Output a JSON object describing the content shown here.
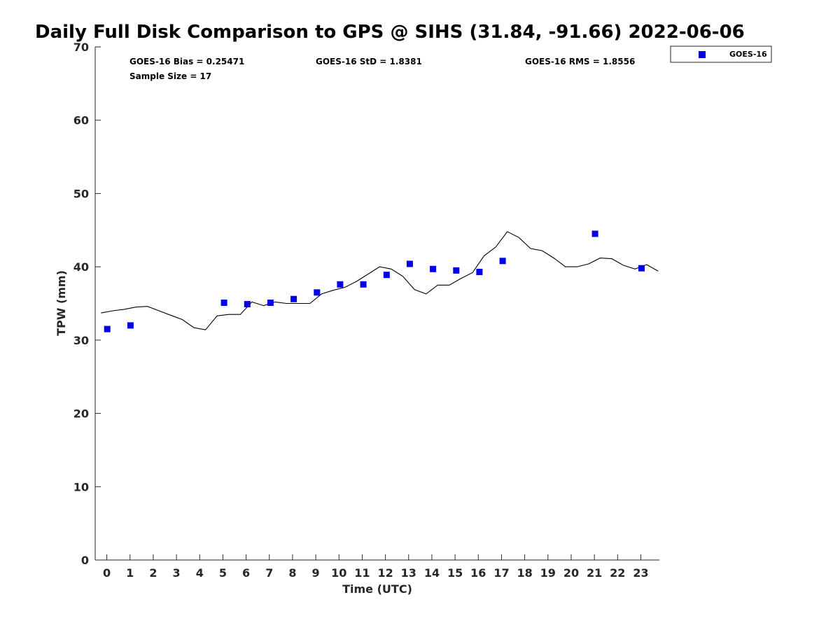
{
  "chart_data": {
    "type": "scatter",
    "title": "Daily Full Disk Comparison to GPS @ SIHS (31.84, -91.66) 2022-06-06",
    "xlabel": "Time (UTC)",
    "ylabel": "TPW (mm)",
    "xlim": [
      -0.5,
      23.8
    ],
    "ylim": [
      0,
      70
    ],
    "x_ticks": [
      0,
      1,
      2,
      3,
      4,
      5,
      6,
      7,
      8,
      9,
      10,
      11,
      12,
      13,
      14,
      15,
      16,
      17,
      18,
      19,
      20,
      21,
      22,
      23
    ],
    "y_ticks": [
      0,
      10,
      20,
      30,
      40,
      50,
      60,
      70
    ],
    "grid": false,
    "legend_position": "outside-top-right",
    "stats": [
      "GOES-16 Bias = 0.25471",
      "GOES-16 StD = 1.8381",
      "GOES-16 RMS = 1.8556",
      "Sample Size = 17"
    ],
    "series": [
      {
        "name": "GOES-16",
        "kind": "scatter",
        "marker": "square",
        "color": "#0000e6",
        "x": [
          0.02,
          1.02,
          5.05,
          6.05,
          7.05,
          8.05,
          9.05,
          10.05,
          11.05,
          12.05,
          13.05,
          14.05,
          15.05,
          16.05,
          17.05,
          21.03,
          23.03
        ],
        "y": [
          31.5,
          32.0,
          35.1,
          34.9,
          35.1,
          35.6,
          36.5,
          37.6,
          37.6,
          38.9,
          40.4,
          39.7,
          39.5,
          39.3,
          40.8,
          44.5,
          39.8
        ]
      },
      {
        "kind": "line",
        "color": "#000000",
        "x": [
          -0.25,
          0.25,
          0.75,
          1.25,
          1.75,
          2.25,
          2.75,
          3.25,
          3.75,
          4.25,
          4.75,
          5.25,
          5.75,
          6.25,
          6.75,
          7.25,
          7.75,
          8.25,
          8.75,
          9.25,
          9.75,
          10.25,
          10.75,
          11.25,
          11.75,
          12.25,
          12.75,
          13.25,
          13.75,
          14.25,
          14.75,
          15.25,
          15.75,
          16.25,
          16.75,
          17.25,
          17.75,
          18.25,
          18.75,
          19.25,
          19.75,
          20.25,
          20.75,
          21.25,
          21.75,
          22.25,
          22.75,
          23.25,
          23.75
        ],
        "y": [
          33.7,
          34.0,
          34.2,
          34.5,
          34.6,
          34.0,
          33.4,
          32.8,
          31.7,
          31.4,
          33.3,
          33.5,
          33.5,
          35.2,
          34.7,
          35.2,
          35.0,
          35.0,
          35.0,
          36.3,
          36.8,
          37.2,
          38.0,
          39.0,
          40.0,
          39.7,
          38.7,
          36.9,
          36.3,
          37.5,
          37.5,
          38.4,
          39.2,
          41.5,
          42.7,
          44.8,
          44.0,
          42.5,
          42.2,
          41.2,
          40.0,
          40.0,
          40.4,
          41.2,
          41.1,
          40.2,
          39.7,
          40.3,
          39.4
        ]
      }
    ]
  }
}
